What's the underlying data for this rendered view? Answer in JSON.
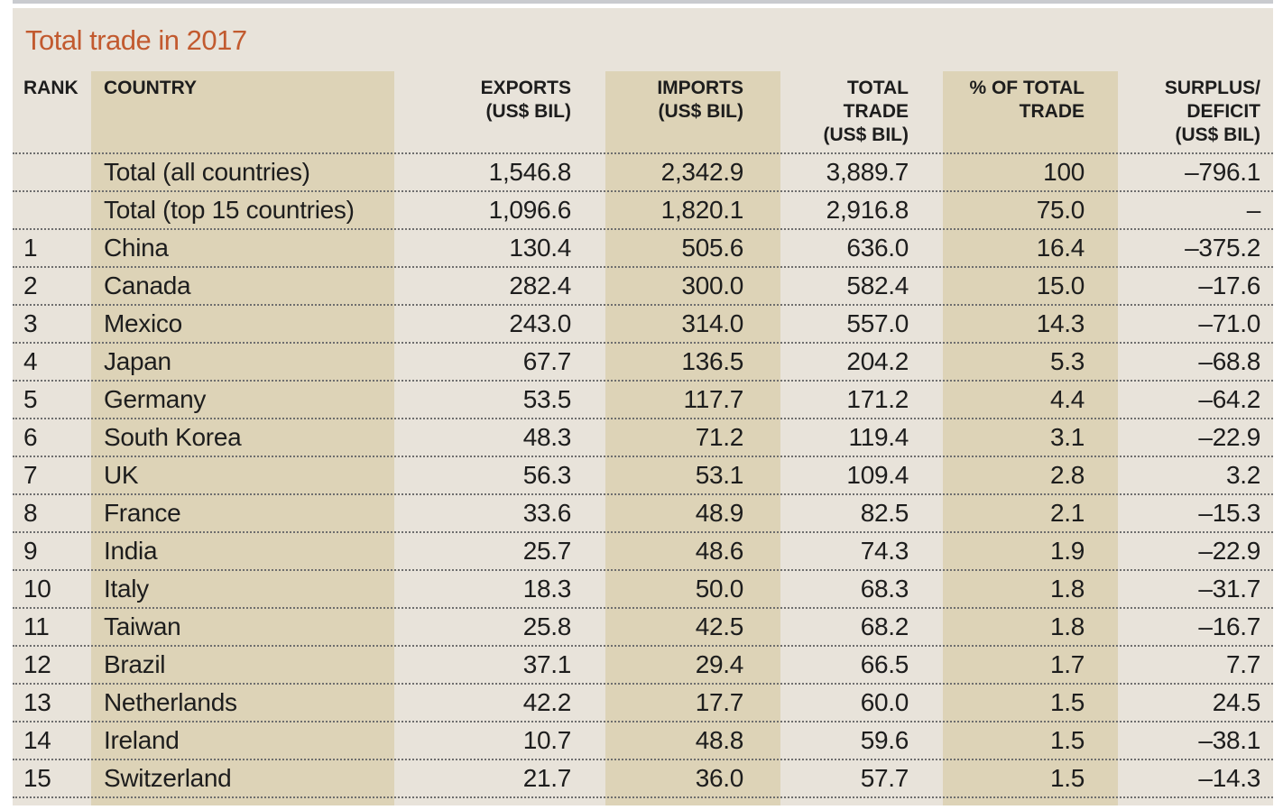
{
  "chart_data": {
    "type": "table",
    "title": "Total trade in 2017",
    "columns": [
      "RANK",
      "COUNTRY",
      "EXPORTS\n(US$ BIL)",
      "IMPORTS\n(US$ BIL)",
      "TOTAL\nTRADE\n(US$ BIL)",
      "% OF TOTAL\nTRADE",
      "SURPLUS/\nDEFICIT\n(US$ BIL)"
    ],
    "rows": [
      [
        "",
        "Total (all countries)",
        "1,546.8",
        "2,342.9",
        "3,889.7",
        "100",
        "–796.1"
      ],
      [
        "",
        "Total (top 15 countries)",
        "1,096.6",
        "1,820.1",
        "2,916.8",
        "75.0",
        "–"
      ],
      [
        "1",
        "China",
        "130.4",
        "505.6",
        "636.0",
        "16.4",
        "–375.2"
      ],
      [
        "2",
        "Canada",
        "282.4",
        "300.0",
        "582.4",
        "15.0",
        "–17.6"
      ],
      [
        "3",
        "Mexico",
        "243.0",
        "314.0",
        "557.0",
        "14.3",
        "–71.0"
      ],
      [
        "4",
        "Japan",
        "67.7",
        "136.5",
        "204.2",
        "5.3",
        "–68.8"
      ],
      [
        "5",
        "Germany",
        "53.5",
        "117.7",
        "171.2",
        "4.4",
        "–64.2"
      ],
      [
        "6",
        "South Korea",
        "48.3",
        "71.2",
        "119.4",
        "3.1",
        "–22.9"
      ],
      [
        "7",
        "UK",
        "56.3",
        "53.1",
        "109.4",
        "2.8",
        "3.2"
      ],
      [
        "8",
        "France",
        "33.6",
        "48.9",
        "82.5",
        "2.1",
        "–15.3"
      ],
      [
        "9",
        "India",
        "25.7",
        "48.6",
        "74.3",
        "1.9",
        "–22.9"
      ],
      [
        "10",
        "Italy",
        "18.3",
        "50.0",
        "68.3",
        "1.8",
        "–31.7"
      ],
      [
        "11",
        "Taiwan",
        "25.8",
        "42.5",
        "68.2",
        "1.8",
        "–16.7"
      ],
      [
        "12",
        "Brazil",
        "37.1",
        "29.4",
        "66.5",
        "1.7",
        "7.7"
      ],
      [
        "13",
        "Netherlands",
        "42.2",
        "17.7",
        "60.0",
        "1.5",
        "24.5"
      ],
      [
        "14",
        "Ireland",
        "10.7",
        "48.8",
        "59.6",
        "1.5",
        "–38.1"
      ],
      [
        "15",
        "Switzerland",
        "21.7",
        "36.0",
        "57.7",
        "1.5",
        "–14.3"
      ]
    ]
  },
  "colors": {
    "title": "#c25a2f",
    "panel_background": "#e8e3da",
    "column_band": "#ddd3b7",
    "text": "#1d1d1d",
    "rule": "#6e6e6e"
  }
}
